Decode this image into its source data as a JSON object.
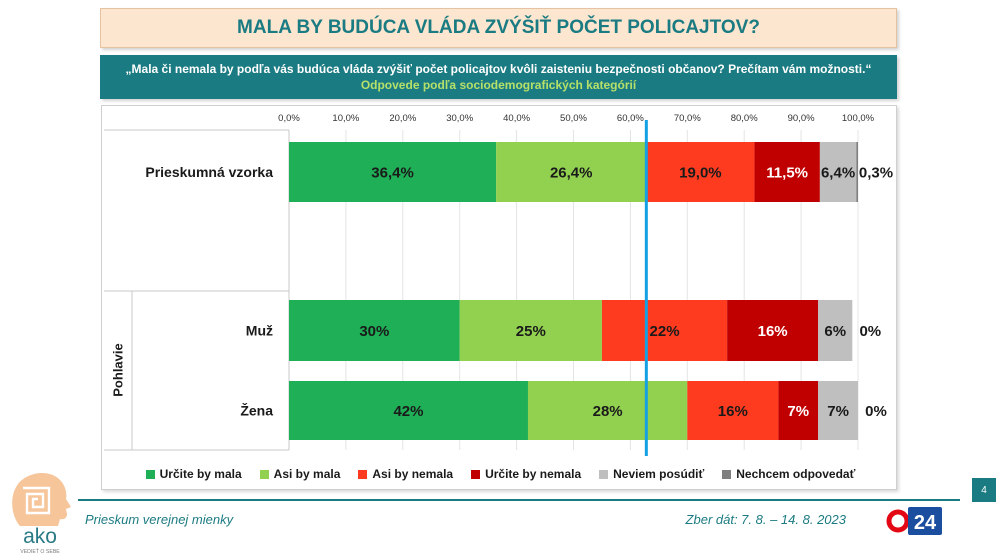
{
  "slide": {
    "title": "MALA BY BUDÚCA VLÁDA ZVÝŠIŤ POČET POLICAJTOV?",
    "question": "„Mala či nemala by podľa vás budúca vláda zvýšiť počet policajtov kvôli zaisteniu bezpečnosti občanov? Prečítam vám možnosti.“",
    "subtitle": "Odpovede podľa sociodemografických kategórií",
    "page_number": "4"
  },
  "colors": {
    "brand_teal": "#1b7b82",
    "title_background": "#fde6cf",
    "subtitle_green": "#b5e06a",
    "reference_line": "#15a0e3"
  },
  "chart_data": {
    "type": "bar",
    "orientation": "horizontal",
    "stacked": true,
    "xlim": [
      0,
      100
    ],
    "x_ticks": [
      0,
      10,
      20,
      30,
      40,
      50,
      60,
      70,
      80,
      90,
      100
    ],
    "x_tick_labels": [
      "0,0%",
      "10,0%",
      "20,0%",
      "30,0%",
      "40,0%",
      "50,0%",
      "60,0%",
      "70,0%",
      "80,0%",
      "90,0%",
      "100,0%"
    ],
    "categories": [
      "Prieskumná vzorka",
      "Muž",
      "Žena"
    ],
    "category_group": {
      "label": "Pohlavie",
      "category_indices": [
        1,
        2
      ]
    },
    "series": [
      {
        "name": "Určite by mala",
        "color": "#1faf57",
        "values": [
          36.4,
          30,
          42
        ],
        "labels": [
          "36,4%",
          "30%",
          "42%"
        ]
      },
      {
        "name": "Asi by mala",
        "color": "#92d050",
        "values": [
          26.4,
          25,
          28
        ],
        "labels": [
          "26,4%",
          "25%",
          "28%"
        ]
      },
      {
        "name": "Asi by nemala",
        "color": "#ff3b1f",
        "values": [
          19.0,
          22,
          16
        ],
        "labels": [
          "19,0%",
          "22%",
          "16%"
        ]
      },
      {
        "name": "Určite by nemala",
        "color": "#c00000",
        "label_color": "#ffffff",
        "values": [
          11.5,
          16,
          7
        ],
        "labels": [
          "11,5%",
          "16%",
          "7%"
        ]
      },
      {
        "name": "Neviem posúdiť",
        "color": "#bfbfbf",
        "values": [
          6.4,
          6,
          7
        ],
        "labels": [
          "6,4%",
          "6%",
          "7%"
        ]
      },
      {
        "name": "Nechcem odpovedať",
        "color": "#7f7f7f",
        "values": [
          0.3,
          0,
          0
        ],
        "labels": [
          "0,3%",
          "0%",
          "0%"
        ]
      }
    ],
    "reference_line": {
      "x": 62.8
    },
    "grid": true,
    "legend_position": "bottom"
  },
  "footer": {
    "left": "Prieskum verejnej mienky",
    "right": "Zber dát: 7. 8. – 14. 8. 2023"
  },
  "logos": {
    "ako_name": "ako",
    "ako_tagline": "VEDIEŤ O SEBE",
    "broadcaster": "24"
  }
}
